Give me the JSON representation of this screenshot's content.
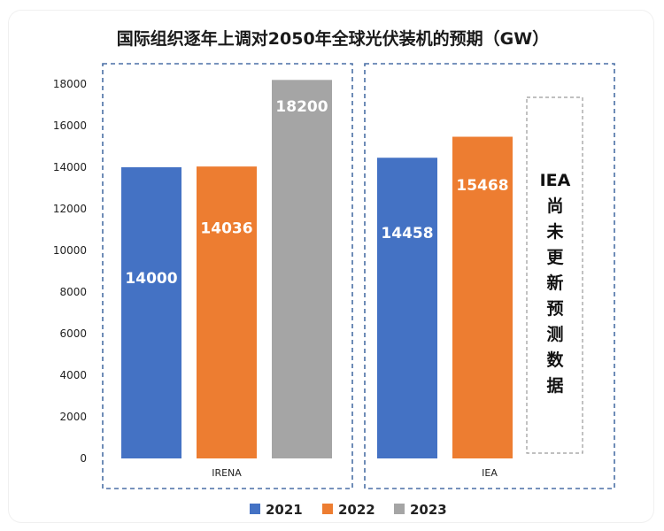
{
  "chart_data": {
    "type": "bar",
    "title": "国际组织逐年上调对2050年全球光伏装机的预期（GW）",
    "ylim": [
      0,
      18000
    ],
    "yticks": [
      "0",
      "2000",
      "4000",
      "6000",
      "8000",
      "10000",
      "12000",
      "14000",
      "16000",
      "18000"
    ],
    "groups": [
      {
        "label": "IRENA",
        "bars": [
          {
            "series": "2021",
            "value": 14000,
            "label": "14000"
          },
          {
            "series": "2022",
            "value": 14036,
            "label": "14036"
          },
          {
            "series": "2023",
            "value": 18200,
            "label": "18200"
          }
        ]
      },
      {
        "label": "IEA",
        "bars": [
          {
            "series": "2021",
            "value": 14458,
            "label": "14458"
          },
          {
            "series": "2022",
            "value": 15468,
            "label": "15468"
          }
        ],
        "note": [
          "IEA",
          "尚",
          "未",
          "更",
          "新",
          "预",
          "测",
          "数",
          "据"
        ]
      }
    ],
    "series": [
      {
        "name": "2021",
        "color": "#4472C4"
      },
      {
        "name": "2022",
        "color": "#ED7D31"
      },
      {
        "name": "2023",
        "color": "#A5A5A5"
      }
    ],
    "legend_position": "bottom",
    "grid": false
  }
}
